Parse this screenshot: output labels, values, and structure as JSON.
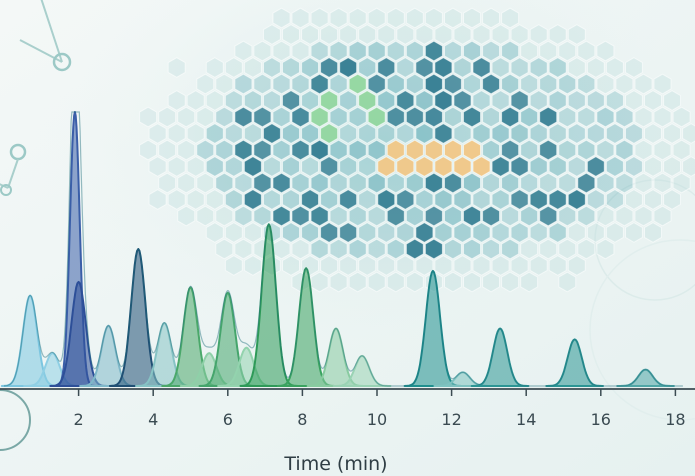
{
  "chart_data": {
    "type": "line",
    "title": "",
    "xlabel": "Time (min)",
    "ylabel": "",
    "xlim": [
      0,
      18.2
    ],
    "ylim": [
      0,
      100
    ],
    "xticks": [
      2,
      4,
      6,
      8,
      10,
      12,
      14,
      16,
      18
    ],
    "grid": false,
    "legend": "none",
    "series": [
      {
        "values_note_free": true,
        "peaks": [
          {
            "x": 0.7,
            "y": 33,
            "color": "#7cc6e0"
          },
          {
            "x": 1.3,
            "y": 12,
            "color": "#8fcfe4"
          },
          {
            "x": 1.9,
            "y": 100,
            "color": "#3a5ea8"
          },
          {
            "x": 2.0,
            "y": 38,
            "color": "#2d4f98"
          },
          {
            "x": 2.8,
            "y": 22,
            "color": "#7fb8c9"
          },
          {
            "x": 3.6,
            "y": 50,
            "color": "#1f4f74"
          },
          {
            "x": 4.3,
            "y": 23,
            "color": "#86c3c4"
          },
          {
            "x": 5.0,
            "y": 36,
            "color": "#4aa86a"
          },
          {
            "x": 5.5,
            "y": 12,
            "color": "#8fd0a8"
          },
          {
            "x": 6.0,
            "y": 34,
            "color": "#45a56c"
          },
          {
            "x": 6.5,
            "y": 14,
            "color": "#93d3ae"
          },
          {
            "x": 7.1,
            "y": 59,
            "color": "#2e9a58"
          },
          {
            "x": 8.1,
            "y": 43,
            "color": "#3aa35f"
          },
          {
            "x": 8.9,
            "y": 21,
            "color": "#88cba0"
          },
          {
            "x": 9.6,
            "y": 11,
            "color": "#9ad3b4"
          },
          {
            "x": 11.5,
            "y": 42,
            "color": "#1f8f8e"
          },
          {
            "x": 12.3,
            "y": 5,
            "color": "#7ec2c0"
          },
          {
            "x": 13.3,
            "y": 21,
            "color": "#2b9594"
          },
          {
            "x": 15.3,
            "y": 17,
            "color": "#2b9594"
          },
          {
            "x": 17.2,
            "y": 6,
            "color": "#4fa6a6"
          }
        ]
      }
    ]
  },
  "colors": {
    "axis": "#3b4b52",
    "hex_teal": "#3f9aa8",
    "hex_dark": "#1d6f86",
    "hex_green": "#7ccf8a",
    "hex_orange": "#f2c27a"
  }
}
